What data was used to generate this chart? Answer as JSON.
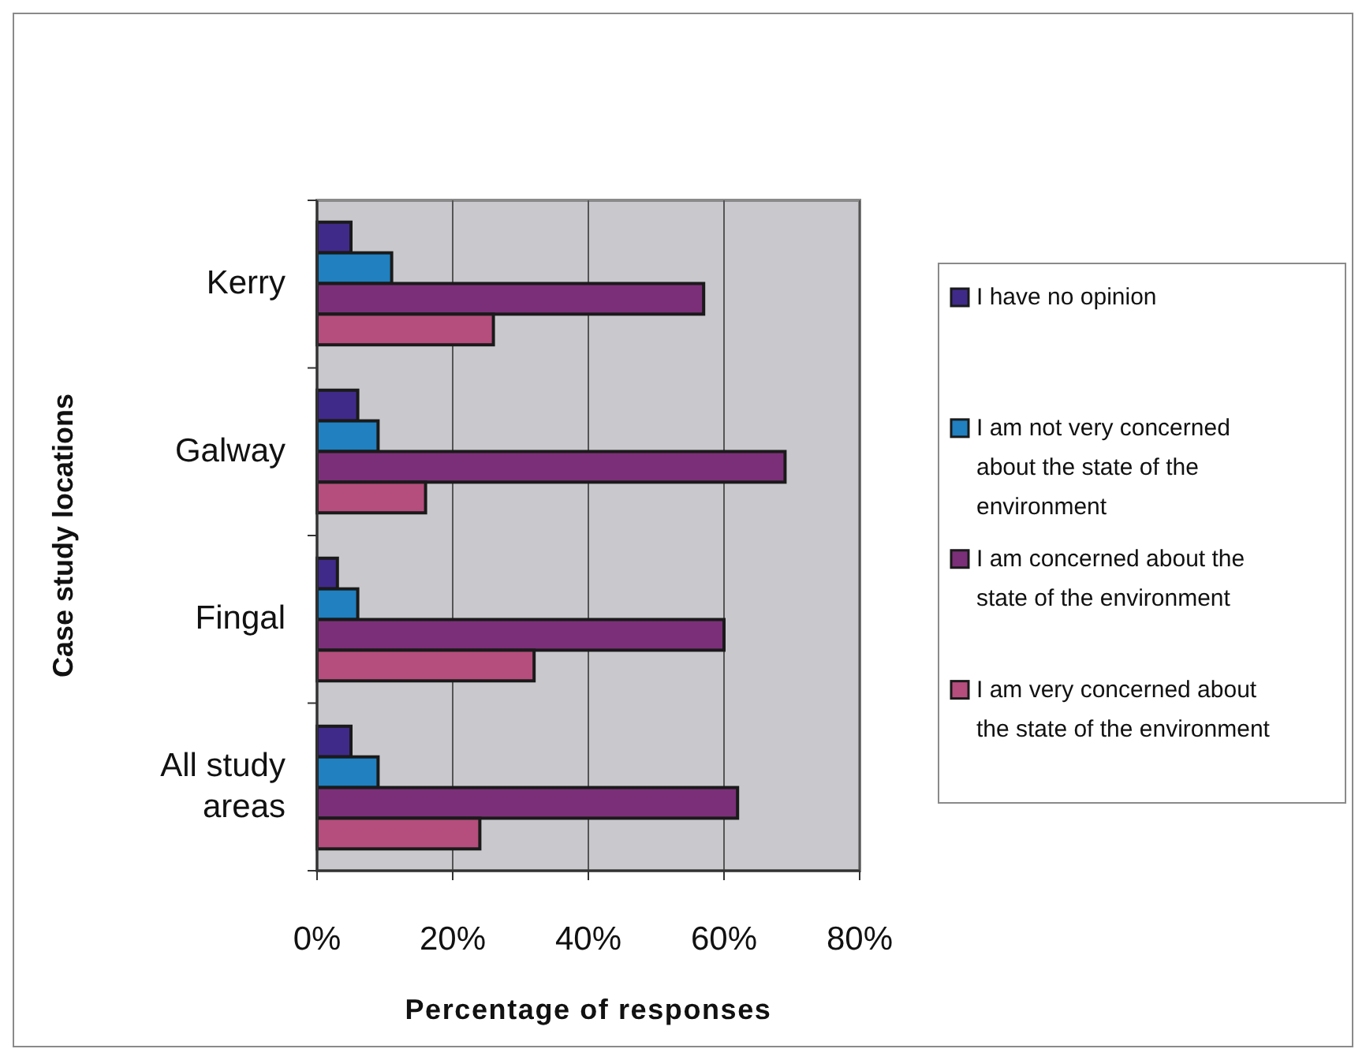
{
  "chart_data": {
    "type": "bar",
    "orientation": "horizontal",
    "xlabel": "Percentage of responses",
    "ylabel": "Case study locations",
    "categories": [
      "Kerry",
      "Galway",
      "Fingal",
      "All study areas"
    ],
    "series": [
      {
        "name": "I have no opinion",
        "color": "#3f2a8a",
        "values": [
          5,
          6,
          3,
          5
        ]
      },
      {
        "name": "I am not very concerned about the state of the environment",
        "color": "#2080c0",
        "values": [
          11,
          9,
          6,
          9
        ]
      },
      {
        "name": "I am concerned about the state of the environment",
        "color": "#7b2f78",
        "values": [
          57,
          69,
          60,
          62
        ]
      },
      {
        "name": "I am very concerned about the state of the environment",
        "color": "#b54e7c",
        "values": [
          26,
          16,
          32,
          24
        ]
      }
    ],
    "xlim": [
      0,
      80
    ],
    "xticks": [
      {
        "value": 0,
        "label": "0%"
      },
      {
        "value": 20,
        "label": "20%"
      },
      {
        "value": 40,
        "label": "40%"
      },
      {
        "value": 60,
        "label": "60%"
      },
      {
        "value": 80,
        "label": "80%"
      }
    ],
    "grid": "x",
    "legend": "right"
  }
}
